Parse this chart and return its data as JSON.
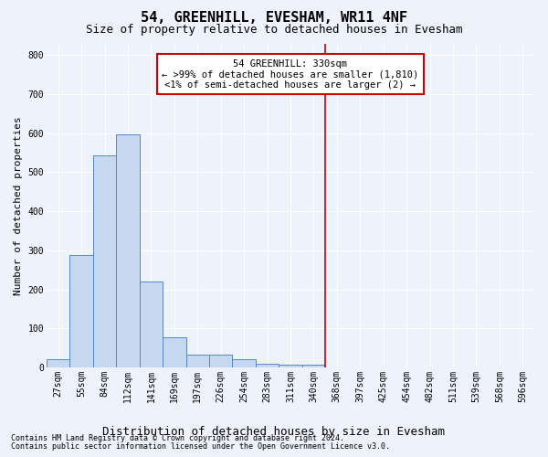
{
  "title": "54, GREENHILL, EVESHAM, WR11 4NF",
  "subtitle": "Size of property relative to detached houses in Evesham",
  "xlabel": "Distribution of detached houses by size in Evesham",
  "ylabel": "Number of detached properties",
  "footnote1": "Contains HM Land Registry data © Crown copyright and database right 2024.",
  "footnote2": "Contains public sector information licensed under the Open Government Licence v3.0.",
  "bar_labels": [
    "27sqm",
    "55sqm",
    "84sqm",
    "112sqm",
    "141sqm",
    "169sqm",
    "197sqm",
    "226sqm",
    "254sqm",
    "283sqm",
    "311sqm",
    "340sqm",
    "368sqm",
    "397sqm",
    "425sqm",
    "454sqm",
    "482sqm",
    "511sqm",
    "539sqm",
    "568sqm",
    "596sqm"
  ],
  "bar_values": [
    22,
    287,
    544,
    597,
    221,
    78,
    32,
    32,
    22,
    10,
    8,
    6,
    0,
    0,
    0,
    0,
    0,
    0,
    0,
    0,
    0
  ],
  "bar_color": "#c5d8f0",
  "bar_edgecolor": "#5588cc",
  "ylim": [
    0,
    830
  ],
  "yticks": [
    0,
    100,
    200,
    300,
    400,
    500,
    600,
    700,
    800
  ],
  "vline_x_bar_index": 11.5,
  "vline_color": "#cc0000",
  "annotation_line1": "54 GREENHILL: 330sqm",
  "annotation_line2": "← >99% of detached houses are smaller (1,810)",
  "annotation_line3": "<1% of semi-detached houses are larger (2) →",
  "annotation_box_color": "#cc0000",
  "background_color": "#eef2fb",
  "grid_color": "#ffffff",
  "title_fontsize": 11,
  "subtitle_fontsize": 9,
  "ylabel_fontsize": 8,
  "xlabel_fontsize": 9,
  "tick_fontsize": 7,
  "footnote_fontsize": 6,
  "annot_fontsize": 7.5
}
